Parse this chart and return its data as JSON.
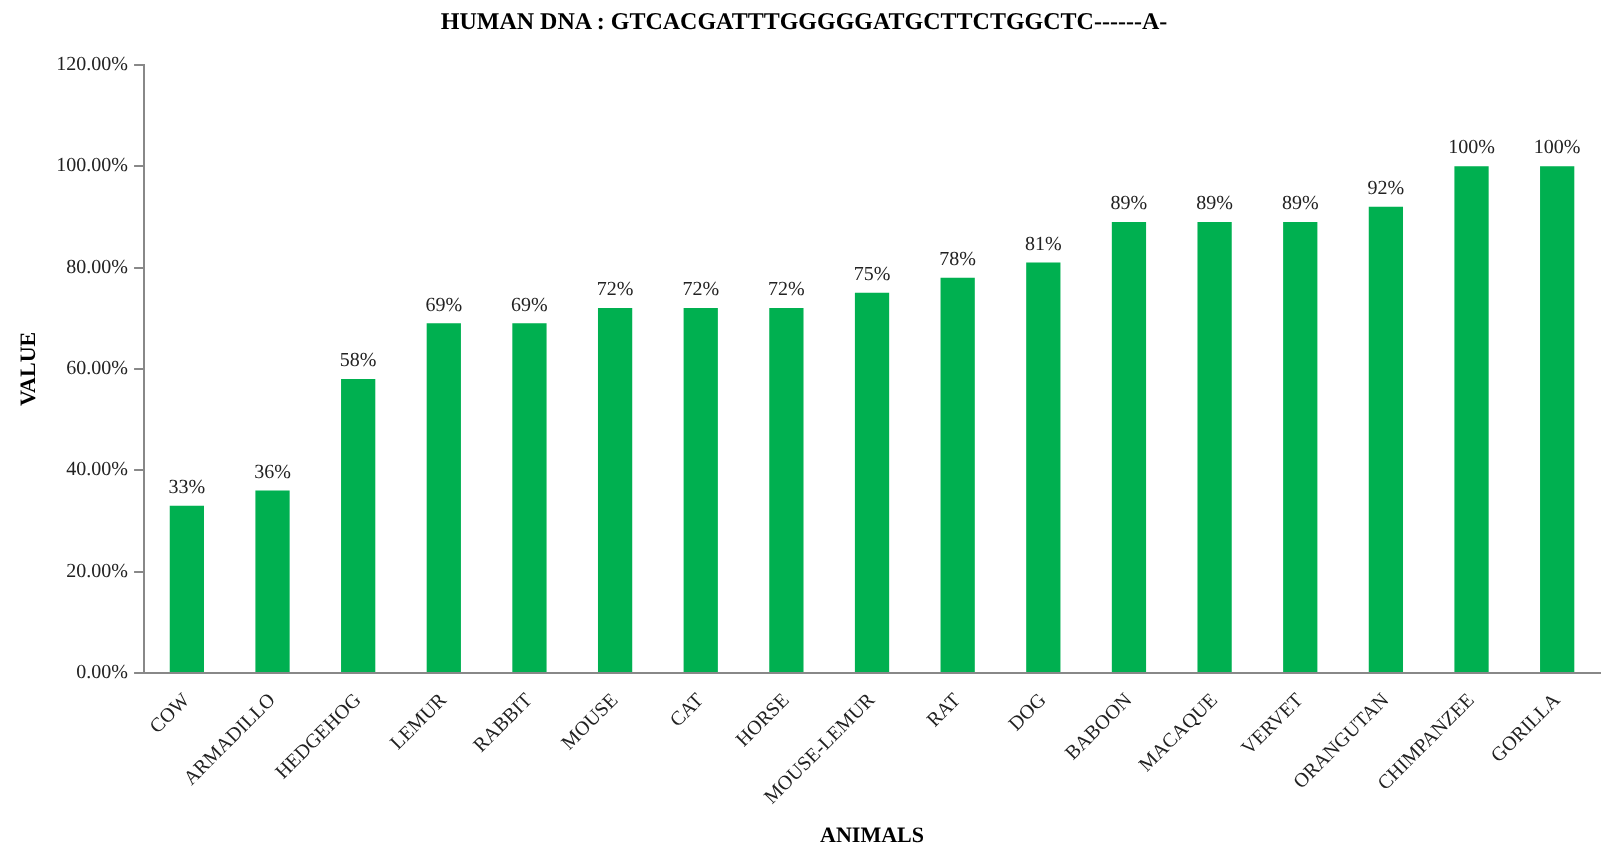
{
  "chart_data": {
    "type": "bar",
    "title": "HUMAN DNA : GTCACGATTTGGGGGATGCTTCTGGCTC------A-",
    "xlabel": "ANIMALS",
    "ylabel": "VALUE",
    "categories": [
      "COW",
      "ARMADILLO",
      "HEDGEHOG",
      "LEMUR",
      "RABBIT",
      "MOUSE",
      "CAT",
      "HORSE",
      "MOUSE-LEMUR",
      "RAT",
      "DOG",
      "BABOON",
      "MACAQUE",
      "VERVET",
      "ORANGUTAN",
      "CHIMPANZEE",
      "GORILLA"
    ],
    "values": [
      33,
      36,
      58,
      69,
      69,
      72,
      72,
      72,
      75,
      78,
      81,
      89,
      89,
      89,
      92,
      100,
      100
    ],
    "value_labels": [
      "33%",
      "36%",
      "58%",
      "69%",
      "69%",
      "72%",
      "72%",
      "72%",
      "75%",
      "78%",
      "81%",
      "89%",
      "89%",
      "89%",
      "92%",
      "100%",
      "100%"
    ],
    "color": "#00b050",
    "ylim": [
      0,
      120
    ],
    "yticks": [
      {
        "value": 0,
        "label": "0.00%"
      },
      {
        "value": 20,
        "label": "20.00%"
      },
      {
        "value": 40,
        "label": "40.00%"
      },
      {
        "value": 60,
        "label": "60.00%"
      },
      {
        "value": 80,
        "label": "80.00%"
      },
      {
        "value": 100,
        "label": "100.00%"
      },
      {
        "value": 120,
        "label": "120.00%"
      }
    ],
    "grid": false,
    "legend": false
  }
}
